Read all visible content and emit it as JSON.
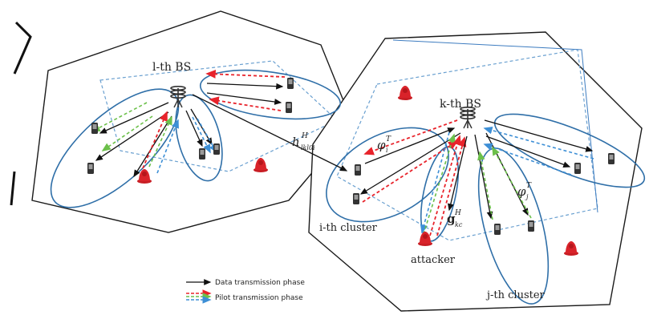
{
  "labels": {
    "l_bs": "l-th BS",
    "k_bs": "k-th BS",
    "h_channel": "h",
    "h_sup": "H",
    "h_sub": "lkl0i",
    "phi_i": "φ",
    "phi_sup": "T",
    "phi_i_sub": "i",
    "phi_j_sub": "j",
    "g_channel": "g",
    "g_sup": "H",
    "g_sub": "kc",
    "i_cluster": "i-th cluster",
    "j_cluster": "j-th cluster",
    "attacker": "attacker"
  },
  "legend": {
    "data": "Data transmission phase",
    "pilot": "Pilot transmission phase"
  },
  "colors": {
    "cell_border": "#1a1a1a",
    "cluster": "#2f6fa8",
    "dashed_square": "#6aa0d0",
    "data_arrow": "#111111",
    "pilot_red": "#e8232b",
    "pilot_green": "#6cc04a",
    "pilot_blue": "#3d8fd6",
    "attacker": "#d9232a"
  }
}
